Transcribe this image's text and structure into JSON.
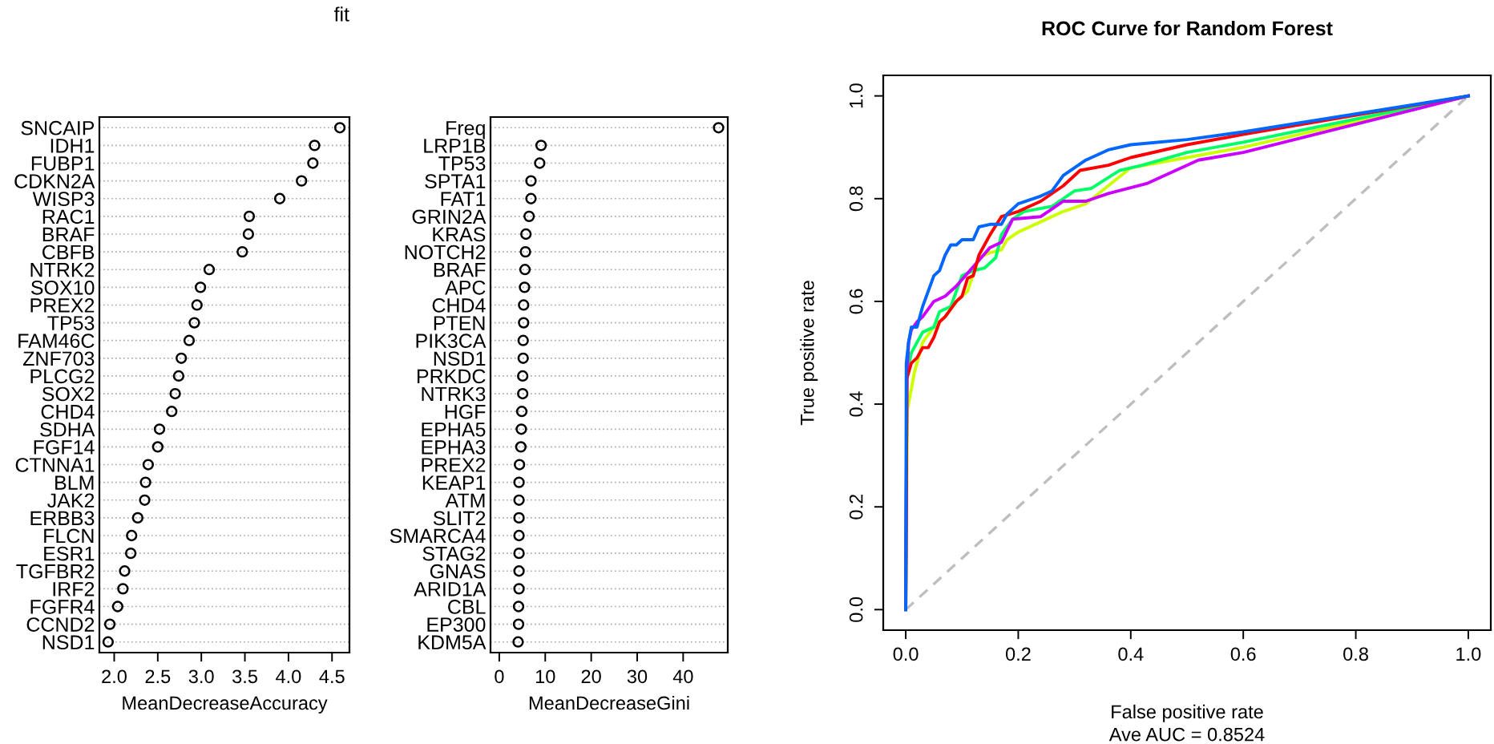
{
  "chart_data": [
    {
      "type": "scatter",
      "title": "fit",
      "orientation": "horizontal",
      "marker": "circle",
      "grid": "y",
      "line_style": "dotted",
      "xlabel": "MeanDecreaseAccuracy",
      "categories": [
        "SNCAIP",
        "IDH1",
        "FUBP1",
        "CDKN2A",
        "WISP3",
        "RAC1",
        "BRAF",
        "CBFB",
        "NTRK2",
        "SOX10",
        "PREX2",
        "TP53",
        "FAM46C",
        "ZNF703",
        "PLCG2",
        "SOX2",
        "CHD4",
        "SDHA",
        "FGF14",
        "CTNNA1",
        "BLM",
        "JAK2",
        "ERBB3",
        "FLCN",
        "ESR1",
        "TGFBR2",
        "IRF2",
        "FGFR4",
        "CCND2",
        "NSD1"
      ],
      "series": [
        {
          "color": "#000000",
          "values": [
            4.59,
            4.3,
            4.28,
            4.15,
            3.9,
            3.55,
            3.54,
            3.47,
            3.09,
            2.99,
            2.95,
            2.92,
            2.86,
            2.77,
            2.74,
            2.7,
            2.66,
            2.52,
            2.5,
            2.39,
            2.36,
            2.35,
            2.27,
            2.2,
            2.19,
            2.12,
            2.1,
            2.04,
            1.95,
            1.93
          ]
        }
      ],
      "xlim": [
        1.83,
        4.7
      ],
      "xticks": [
        {
          "value": 2,
          "label": "2.0"
        },
        2.5,
        {
          "value": 3,
          "label": "3.0"
        },
        3.5,
        {
          "value": 4,
          "label": "4.0"
        },
        4.5
      ]
    },
    {
      "type": "scatter",
      "orientation": "horizontal",
      "marker": "circle",
      "grid": "y",
      "line_style": "dotted",
      "xlabel": "MeanDecreaseGini",
      "categories": [
        "Freq",
        "LRP1B",
        "TP53",
        "SPTA1",
        "FAT1",
        "GRIN2A",
        "KRAS",
        "NOTCH2",
        "BRAF",
        "APC",
        "CHD4",
        "PTEN",
        "PIK3CA",
        "NSD1",
        "PRKDC",
        "NTRK3",
        "HGF",
        "EPHA5",
        "EPHA3",
        "PREX2",
        "KEAP1",
        "ATM",
        "SLIT2",
        "SMARCA4",
        "STAG2",
        "GNAS",
        "ARID1A",
        "CBL",
        "EP300",
        "KDM5A"
      ],
      "series": [
        {
          "color": "#000000",
          "values": [
            47.7,
            9.1,
            8.8,
            6.9,
            6.9,
            6.5,
            5.8,
            5.7,
            5.6,
            5.5,
            5.3,
            5.3,
            5.2,
            5.2,
            5.1,
            5.1,
            4.9,
            4.8,
            4.7,
            4.4,
            4.3,
            4.3,
            4.3,
            4.3,
            4.3,
            4.3,
            4.3,
            4.2,
            4.2,
            4.1
          ]
        }
      ],
      "xlim": [
        -1.9,
        49.7
      ],
      "xticks": [
        0,
        10,
        20,
        30,
        40
      ]
    },
    {
      "type": "line",
      "title": "ROC Curve for Random Forest",
      "xlabel": "False positive rate",
      "ylabel": "True positive rate",
      "annotations": [
        "Ave AUC = 0.8524"
      ],
      "xlim": [
        -0.04,
        1.04
      ],
      "ylim": [
        -0.04,
        1.04
      ],
      "xticks": [
        {
          "value": 0,
          "label": "0.0"
        },
        0.2,
        0.4,
        0.6,
        0.8,
        {
          "value": 1,
          "label": "1.0"
        }
      ],
      "yticks": [
        {
          "value": 0,
          "label": "0.0"
        },
        0.2,
        0.4,
        0.6,
        0.8,
        {
          "value": 1,
          "label": "1.0"
        }
      ],
      "series": [
        {
          "color": "#bebebe",
          "line_style": "dashed",
          "x": [
            0,
            1
          ],
          "values": [
            0,
            1
          ]
        },
        {
          "color": "#ccff00",
          "x": [
            0,
            0.003,
            0.01,
            0.015,
            0.02,
            0.03,
            0.05,
            0.07,
            0.09,
            0.11,
            0.13,
            0.15,
            0.17,
            0.18,
            0.2,
            0.24,
            0.28,
            0.32,
            0.36,
            0.4,
            0.5,
            0.6,
            1
          ],
          "values": [
            0,
            0.39,
            0.43,
            0.46,
            0.48,
            0.52,
            0.55,
            0.57,
            0.6,
            0.62,
            0.685,
            0.695,
            0.7,
            0.72,
            0.735,
            0.755,
            0.775,
            0.79,
            0.825,
            0.86,
            0.88,
            0.9,
            1
          ]
        },
        {
          "color": "#00ff66",
          "x": [
            0,
            0.002,
            0.01,
            0.02,
            0.03,
            0.05,
            0.06,
            0.08,
            0.09,
            0.1,
            0.12,
            0.14,
            0.16,
            0.17,
            0.19,
            0.21,
            0.26,
            0.28,
            0.3,
            0.33,
            0.38,
            0.42,
            0.5,
            0.6,
            1
          ],
          "values": [
            0,
            0.46,
            0.5,
            0.52,
            0.54,
            0.55,
            0.58,
            0.59,
            0.62,
            0.65,
            0.66,
            0.665,
            0.685,
            0.73,
            0.76,
            0.775,
            0.785,
            0.8,
            0.815,
            0.82,
            0.855,
            0.865,
            0.89,
            0.91,
            1
          ]
        },
        {
          "color": "#cc00ff",
          "x": [
            0,
            0.002,
            0.005,
            0.01,
            0.02,
            0.03,
            0.05,
            0.07,
            0.09,
            0.11,
            0.13,
            0.15,
            0.17,
            0.19,
            0.24,
            0.28,
            0.32,
            0.36,
            0.43,
            0.52,
            0.6,
            1
          ],
          "values": [
            0,
            0.45,
            0.52,
            0.545,
            0.56,
            0.57,
            0.6,
            0.61,
            0.63,
            0.655,
            0.68,
            0.705,
            0.715,
            0.76,
            0.765,
            0.795,
            0.795,
            0.81,
            0.83,
            0.875,
            0.89,
            1
          ]
        },
        {
          "color": "#ff0000",
          "x": [
            0,
            0.002,
            0.01,
            0.02,
            0.03,
            0.04,
            0.05,
            0.06,
            0.07,
            0.09,
            0.1,
            0.11,
            0.12,
            0.13,
            0.15,
            0.17,
            0.2,
            0.24,
            0.28,
            0.31,
            0.36,
            0.4,
            0.5,
            0.6,
            1
          ],
          "values": [
            0,
            0.45,
            0.48,
            0.49,
            0.51,
            0.51,
            0.53,
            0.56,
            0.57,
            0.6,
            0.61,
            0.645,
            0.65,
            0.69,
            0.73,
            0.765,
            0.775,
            0.795,
            0.825,
            0.855,
            0.865,
            0.88,
            0.905,
            0.925,
            1
          ]
        },
        {
          "color": "#0066ff",
          "x": [
            0,
            0.001,
            0.005,
            0.01,
            0.02,
            0.03,
            0.04,
            0.05,
            0.06,
            0.07,
            0.08,
            0.09,
            0.1,
            0.12,
            0.13,
            0.15,
            0.17,
            0.18,
            0.2,
            0.24,
            0.26,
            0.28,
            0.32,
            0.36,
            0.4,
            0.5,
            0.6,
            1
          ],
          "values": [
            0,
            0.48,
            0.52,
            0.55,
            0.55,
            0.59,
            0.62,
            0.65,
            0.66,
            0.69,
            0.71,
            0.71,
            0.72,
            0.72,
            0.745,
            0.75,
            0.75,
            0.77,
            0.79,
            0.805,
            0.815,
            0.845,
            0.875,
            0.895,
            0.905,
            0.915,
            0.93,
            1
          ]
        }
      ]
    }
  ]
}
